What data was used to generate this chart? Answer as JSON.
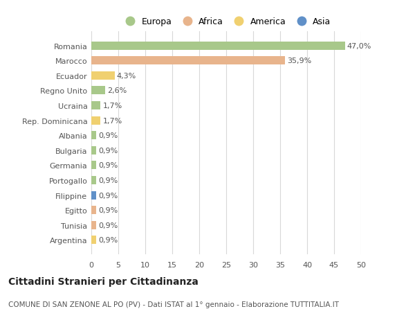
{
  "countries": [
    "Romania",
    "Marocco",
    "Ecuador",
    "Regno Unito",
    "Ucraina",
    "Rep. Dominicana",
    "Albania",
    "Bulgaria",
    "Germania",
    "Portogallo",
    "Filippine",
    "Egitto",
    "Tunisia",
    "Argentina"
  ],
  "values": [
    47.0,
    35.9,
    4.3,
    2.6,
    1.7,
    1.7,
    0.9,
    0.9,
    0.9,
    0.9,
    0.9,
    0.9,
    0.9,
    0.9
  ],
  "labels": [
    "47,0%",
    "35,9%",
    "4,3%",
    "2,6%",
    "1,7%",
    "1,7%",
    "0,9%",
    "0,9%",
    "0,9%",
    "0,9%",
    "0,9%",
    "0,9%",
    "0,9%",
    "0,9%"
  ],
  "colors": [
    "#a8c88a",
    "#e8b48c",
    "#f0d070",
    "#a8c88a",
    "#a8c88a",
    "#f0d070",
    "#a8c88a",
    "#a8c88a",
    "#a8c88a",
    "#a8c88a",
    "#6090c8",
    "#e8b48c",
    "#e8b48c",
    "#f0d070"
  ],
  "legend_labels": [
    "Europa",
    "Africa",
    "America",
    "Asia"
  ],
  "legend_colors": [
    "#a8c88a",
    "#e8b48c",
    "#f0d070",
    "#6090c8"
  ],
  "title": "Cittadini Stranieri per Cittadinanza",
  "subtitle": "COMUNE DI SAN ZENONE AL PO (PV) - Dati ISTAT al 1° gennaio - Elaborazione TUTTITALIA.IT",
  "xlim": [
    0,
    50
  ],
  "xticks": [
    0,
    5,
    10,
    15,
    20,
    25,
    30,
    35,
    40,
    45,
    50
  ],
  "background_color": "#ffffff",
  "grid_color": "#d8d8d8",
  "bar_height": 0.55,
  "title_fontsize": 10,
  "subtitle_fontsize": 7.5,
  "label_fontsize": 8,
  "tick_fontsize": 8,
  "legend_fontsize": 9
}
